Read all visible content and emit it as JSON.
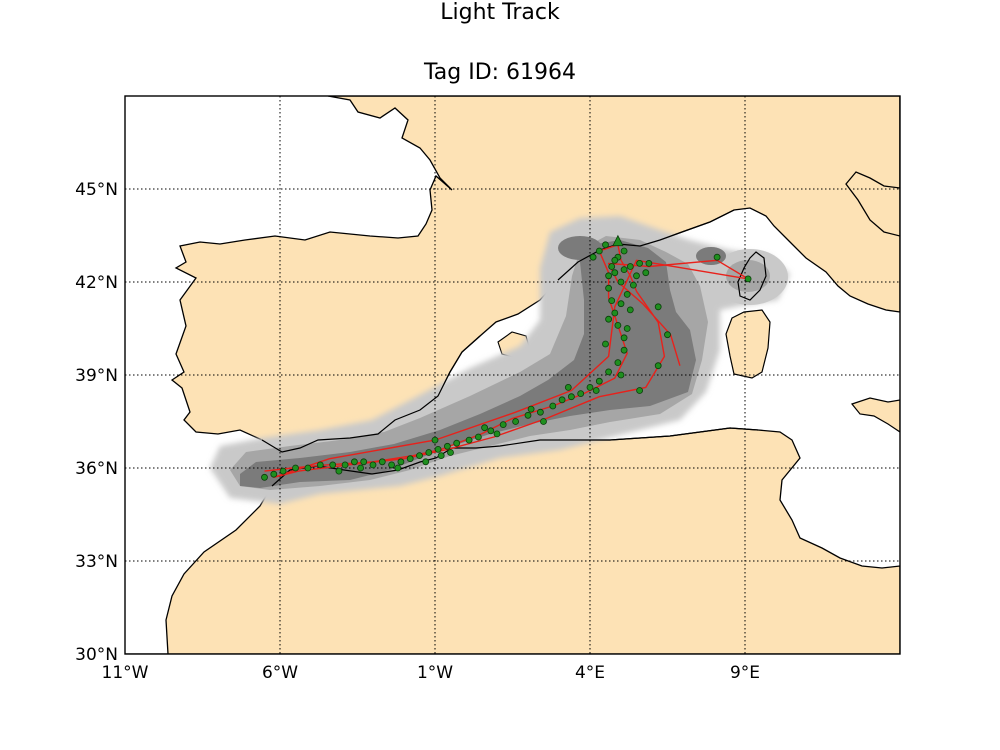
{
  "title": "Light Track",
  "subtitle": "Tag ID: 61964",
  "colors": {
    "land": "#fde2b5",
    "sea": "#ffffff",
    "coast": "#000000",
    "kernel_outer": "#c9c9c9",
    "kernel_mid": "#a6a6a6",
    "kernel_inner": "#7b7b7b",
    "track": "#e8211b",
    "point_fill": "#1f8f1f",
    "point_edge": "#0b3d0b",
    "grid": "#000000"
  },
  "chart_data": {
    "type": "map-track",
    "lon_range": [
      -11,
      14
    ],
    "lat_range": [
      30,
      48
    ],
    "x_ticks": [
      "11°W",
      "6°W",
      "1°W",
      "4°E",
      "9°E"
    ],
    "y_ticks": [
      "45°N",
      "42°N",
      "39°N",
      "36°N",
      "33°N",
      "30°N"
    ],
    "x_tick_values": [
      -11,
      -6,
      -1,
      4,
      9
    ],
    "y_tick_values": [
      45,
      42,
      39,
      36,
      33,
      30
    ],
    "grid": "dotted",
    "track": [
      [
        -6.5,
        35.9
      ],
      [
        -5.6,
        36.0
      ],
      [
        -4.5,
        36.1
      ],
      [
        -3.0,
        36.2
      ],
      [
        -1.7,
        36.4
      ],
      [
        -0.8,
        36.6
      ],
      [
        0.5,
        37.1
      ],
      [
        1.5,
        37.6
      ],
      [
        2.8,
        38.0
      ],
      [
        3.8,
        38.4
      ],
      [
        4.8,
        38.9
      ],
      [
        5.2,
        39.7
      ],
      [
        4.9,
        40.6
      ],
      [
        4.6,
        41.5
      ],
      [
        4.6,
        42.3
      ],
      [
        4.3,
        43.0
      ],
      [
        4.9,
        43.2
      ],
      [
        5.0,
        42.7
      ],
      [
        5.3,
        42.2
      ],
      [
        5.5,
        41.7
      ],
      [
        6.2,
        40.7
      ],
      [
        6.4,
        39.6
      ],
      [
        5.8,
        38.6
      ],
      [
        4.3,
        38.3
      ],
      [
        2.6,
        37.6
      ],
      [
        0.9,
        37.0
      ],
      [
        -0.6,
        36.6
      ],
      [
        -2.0,
        36.3
      ],
      [
        -3.8,
        36.1
      ],
      [
        -5.4,
        35.9
      ],
      [
        -6.2,
        35.7
      ],
      [
        -4.4,
        36.3
      ],
      [
        -1.0,
        36.9
      ],
      [
        1.6,
        37.8
      ],
      [
        3.4,
        38.5
      ],
      [
        4.6,
        39.6
      ],
      [
        4.8,
        41.2
      ],
      [
        5.5,
        42.7
      ],
      [
        9.1,
        42.1
      ],
      [
        8.1,
        42.7
      ],
      [
        5.9,
        42.5
      ],
      [
        4.6,
        42.6
      ],
      [
        4.9,
        42.0
      ],
      [
        5.7,
        41.3
      ],
      [
        6.6,
        40.3
      ],
      [
        6.9,
        39.3
      ]
    ],
    "points": [
      [
        -6.5,
        35.7
      ],
      [
        -6.2,
        35.8
      ],
      [
        -5.9,
        35.9
      ],
      [
        -5.5,
        36.0
      ],
      [
        -5.1,
        36.0
      ],
      [
        -4.7,
        36.1
      ],
      [
        -4.3,
        36.1
      ],
      [
        -3.9,
        36.1
      ],
      [
        -3.6,
        36.2
      ],
      [
        -3.3,
        36.2
      ],
      [
        -3.0,
        36.1
      ],
      [
        -2.7,
        36.2
      ],
      [
        -2.4,
        36.1
      ],
      [
        -2.1,
        36.2
      ],
      [
        -1.8,
        36.3
      ],
      [
        -1.5,
        36.4
      ],
      [
        -1.2,
        36.5
      ],
      [
        -0.9,
        36.6
      ],
      [
        -0.6,
        36.7
      ],
      [
        -0.3,
        36.8
      ],
      [
        0.1,
        36.9
      ],
      [
        0.4,
        37.0
      ],
      [
        0.8,
        37.2
      ],
      [
        1.2,
        37.4
      ],
      [
        1.6,
        37.5
      ],
      [
        2.0,
        37.7
      ],
      [
        2.4,
        37.8
      ],
      [
        2.8,
        38.0
      ],
      [
        3.1,
        38.2
      ],
      [
        3.4,
        38.3
      ],
      [
        3.7,
        38.4
      ],
      [
        4.0,
        38.6
      ],
      [
        4.3,
        38.8
      ],
      [
        4.6,
        39.1
      ],
      [
        4.9,
        39.4
      ],
      [
        5.1,
        39.8
      ],
      [
        5.1,
        40.2
      ],
      [
        4.9,
        40.6
      ],
      [
        4.8,
        41.0
      ],
      [
        4.7,
        41.4
      ],
      [
        4.6,
        41.8
      ],
      [
        4.6,
        42.2
      ],
      [
        4.7,
        42.5
      ],
      [
        4.9,
        42.8
      ],
      [
        5.1,
        43.0
      ],
      [
        4.3,
        43.0
      ],
      [
        4.1,
        42.8
      ],
      [
        5.3,
        42.5
      ],
      [
        5.5,
        42.2
      ],
      [
        5.4,
        41.9
      ],
      [
        5.2,
        41.6
      ],
      [
        5.0,
        41.3
      ],
      [
        5.6,
        42.6
      ],
      [
        5.8,
        42.3
      ],
      [
        5.0,
        42.0
      ],
      [
        5.2,
        40.5
      ],
      [
        5.0,
        39.0
      ],
      [
        5.6,
        38.5
      ],
      [
        6.2,
        39.3
      ],
      [
        6.5,
        40.3
      ],
      [
        6.2,
        41.2
      ],
      [
        9.1,
        42.1
      ],
      [
        8.1,
        42.8
      ],
      [
        5.9,
        42.6
      ],
      [
        4.8,
        42.7
      ],
      [
        4.5,
        43.2
      ],
      [
        4.2,
        38.5
      ],
      [
        2.5,
        37.5
      ],
      [
        1.0,
        37.1
      ],
      [
        -0.5,
        36.5
      ],
      [
        -1.3,
        36.2
      ],
      [
        -2.2,
        36.0
      ],
      [
        -3.4,
        36.0
      ],
      [
        -4.1,
        35.9
      ],
      [
        -1.0,
        36.9
      ],
      [
        -0.8,
        36.4
      ],
      [
        0.6,
        37.3
      ],
      [
        2.1,
        37.9
      ],
      [
        3.3,
        38.6
      ],
      [
        4.5,
        40.0
      ],
      [
        4.6,
        40.8
      ],
      [
        5.3,
        41.1
      ],
      [
        4.8,
        42.3
      ],
      [
        5.1,
        42.4
      ]
    ]
  }
}
